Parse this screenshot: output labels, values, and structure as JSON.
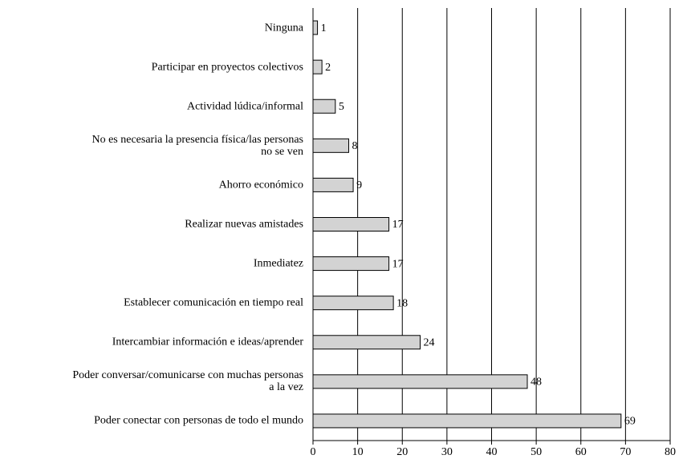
{
  "chart_data": {
    "type": "bar",
    "orientation": "horizontal",
    "categories": [
      "Ninguna",
      "Participar en proyectos colectivos",
      "Actividad lúdica/informal",
      "No es necesaria la presencia física/las personas\nno se ven",
      "Ahorro económico",
      "Realizar nuevas amistades",
      "Inmediatez",
      "Establecer comunicación en tiempo real",
      "Intercambiar información e ideas/aprender",
      "Poder conversar/comunicarse con muchas personas\na la vez",
      "Poder conectar con personas de todo el mundo"
    ],
    "values": [
      1,
      2,
      5,
      8,
      9,
      17,
      17,
      18,
      24,
      48,
      69
    ],
    "color": "#d3d3d3",
    "xlim": [
      0,
      80
    ],
    "xticks": [
      0,
      10,
      20,
      30,
      40,
      50,
      60,
      70,
      80
    ],
    "grid": true
  }
}
